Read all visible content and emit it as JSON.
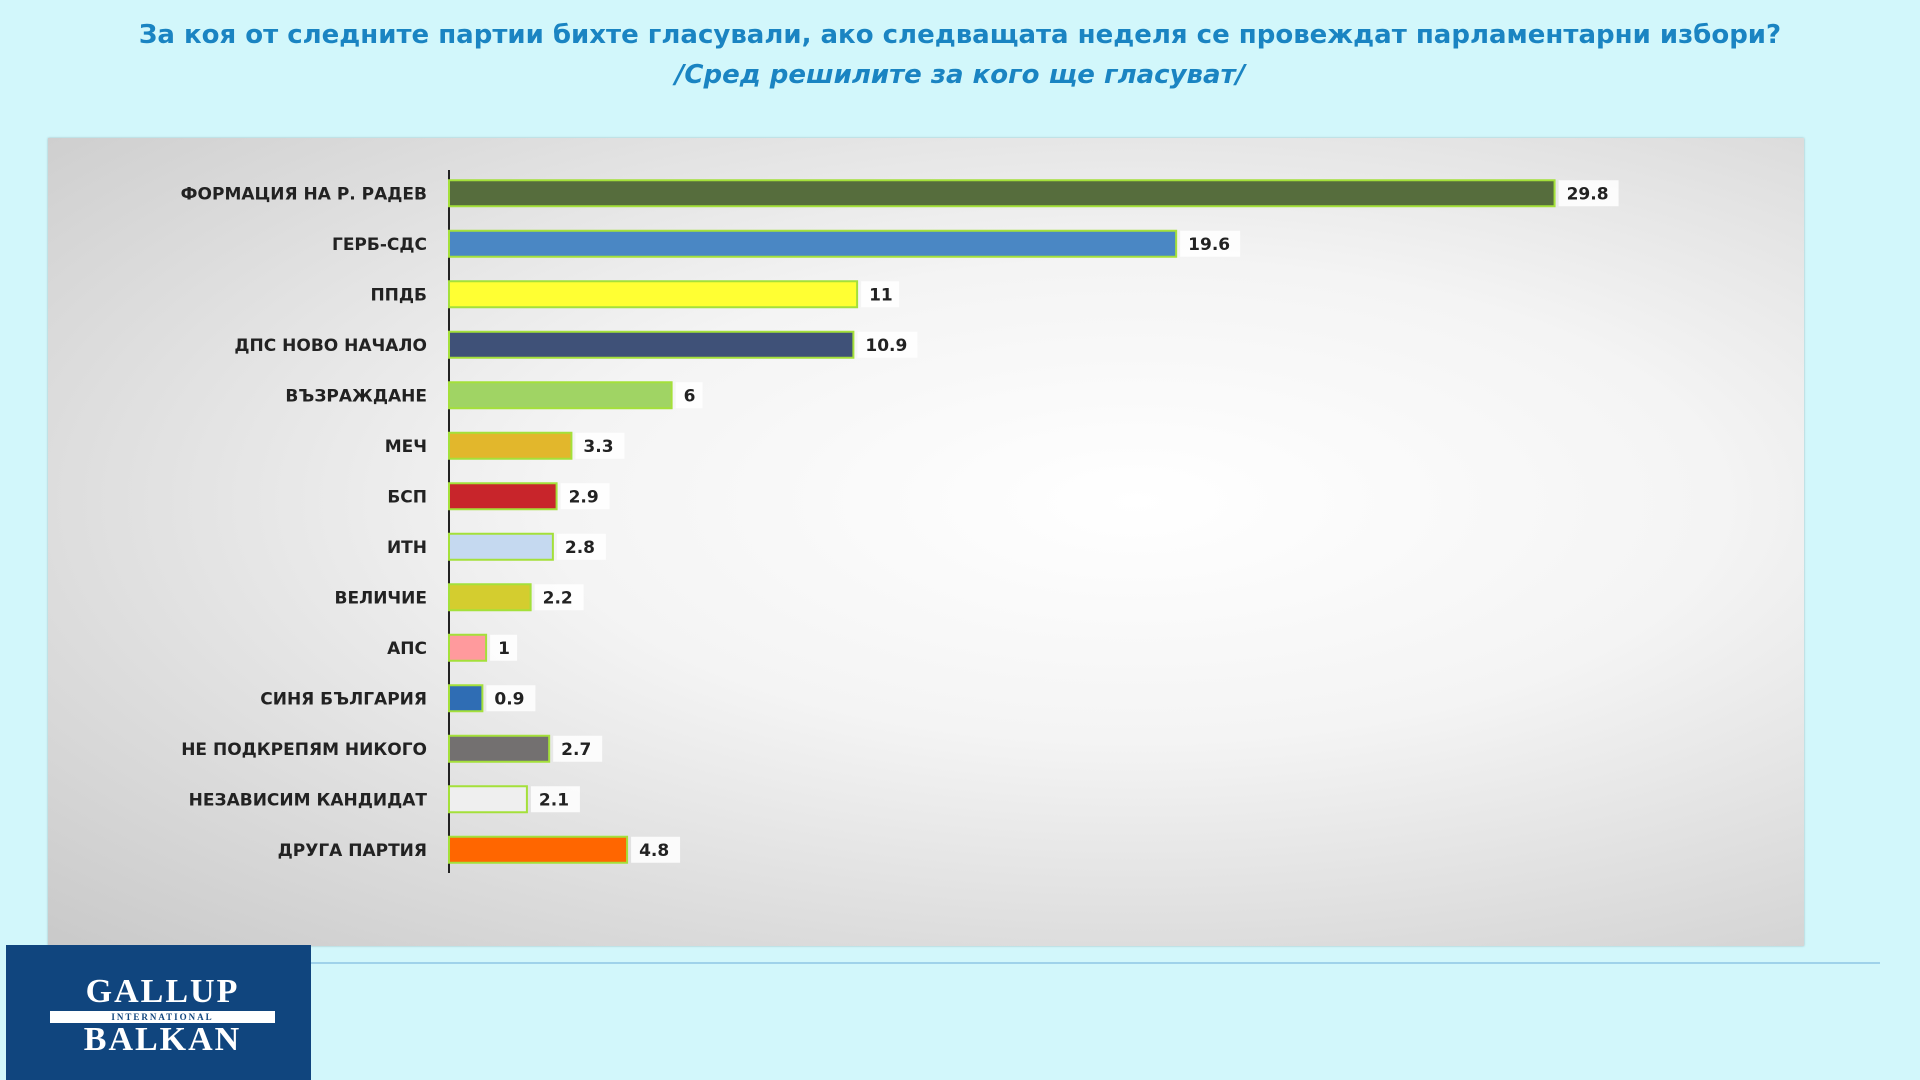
{
  "chart_data": {
    "type": "bar",
    "orientation": "horizontal",
    "title": "За коя от следните партии бихте  гласували, ако следващата неделя се провеждат парламентарни избори?",
    "subtitle": "/Сред  решилите за кого ще гласуват/",
    "categories": [
      "ФОРМАЦИЯ НА Р. РАДЕВ",
      "ГЕРБ-СДС",
      "ППДБ",
      "ДПС НОВО  НАЧАЛО",
      "ВЪЗРАЖДАНЕ",
      "МЕЧ",
      "БСП",
      "ИТН",
      "ВЕЛИЧИЕ",
      "АПС",
      "СИНЯ БЪЛГАРИЯ",
      "НЕ ПОДКРЕПЯМ НИКОГО",
      "НЕЗАВИСИМ КАНДИДАТ",
      "ДРУГА  ПАРТИЯ"
    ],
    "values": [
      29.8,
      19.6,
      11,
      10.9,
      6,
      3.3,
      2.9,
      2.8,
      2.2,
      1,
      0.9,
      2.7,
      2.1,
      4.8
    ],
    "data_labels": [
      "29.8",
      "19.6",
      "11",
      "10.9",
      "6",
      "3.3",
      "2.9",
      "2.8",
      "2.2",
      "1",
      "0.9",
      "2.7",
      "2.1",
      "4.8"
    ],
    "colors": [
      "#566d3d",
      "#4a87c4",
      "#ffff33",
      "#3f5178",
      "#a0d464",
      "#e2b72c",
      "#c8252b",
      "#c5d9f0",
      "#d4cd2f",
      "#ff9a9d",
      "#2f6db4",
      "#737070",
      "#efefef",
      "#ff6600"
    ],
    "bar_border_color": "#a4e03a",
    "xlim": [
      0,
      32
    ],
    "grid": false,
    "legend": "none"
  },
  "logo": {
    "top": "GALLUP",
    "middle": "INTERNATIONAL",
    "bottom": "BALKAN"
  }
}
